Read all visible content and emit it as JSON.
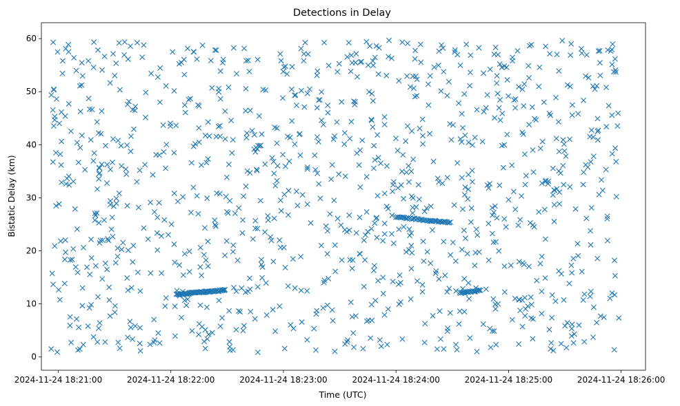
{
  "chart_data": {
    "type": "scatter",
    "title": "Detections in Delay",
    "xlabel": "Time (UTC)",
    "ylabel": "Bistatic Delay (km)",
    "x_axis": {
      "kind": "datetime",
      "range": [
        "2024-11-24 18:20:51",
        "2024-11-24 18:26:13"
      ],
      "ticks": [
        "2024-11-24 18:21:00",
        "2024-11-24 18:22:00",
        "2024-11-24 18:23:00",
        "2024-11-24 18:24:00",
        "2024-11-24 18:25:00",
        "2024-11-24 18:26:00"
      ]
    },
    "y_axis": {
      "range": [
        -2.5,
        63
      ],
      "ticks": [
        0,
        10,
        20,
        30,
        40,
        50,
        60
      ]
    },
    "grid": false,
    "legend": "none",
    "marker": "x",
    "marker_color": "#1f77b4",
    "series": [
      {
        "name": "",
        "time_start": "2024-11-24 18:20:56",
        "time_end": "2024-11-24 18:25:59",
        "delay_range": [
          0.8,
          59.9
        ],
        "clutter_points": 1100,
        "tracks": [
          {
            "from": [
              "2024-11-24 18:22:03",
              11.8
            ],
            "to": [
              "2024-11-24 18:22:29",
              12.6
            ],
            "points": 70
          },
          {
            "from": [
              "2024-11-24 18:24:00",
              26.4
            ],
            "to": [
              "2024-11-24 18:24:29",
              25.3
            ],
            "points": 45
          },
          {
            "from": [
              "2024-11-24 18:24:34",
              12.1
            ],
            "to": [
              "2024-11-24 18:24:45",
              12.5
            ],
            "points": 22
          }
        ]
      }
    ]
  }
}
